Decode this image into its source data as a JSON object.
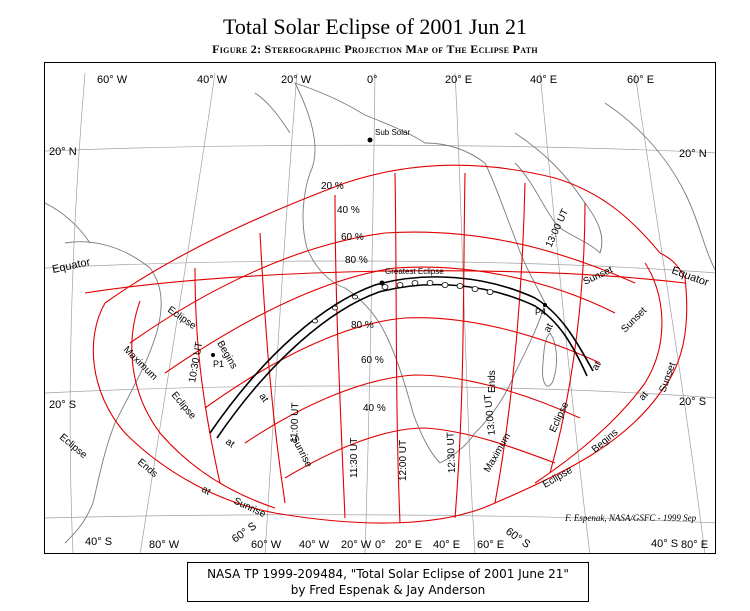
{
  "title": "Total Solar Eclipse of 2001 Jun 21",
  "subtitle": "Figure 2:  Stereographic Projection Map of The Eclipse Path",
  "credit": "F. Espenak, NASA/GSFC - 1999 Sep",
  "caption": {
    "line1": "NASA TP 1999-209484, \"Total Solar Eclipse of 2001 June 21\"",
    "line2": "by Fred Espenak & Jay Anderson"
  },
  "longitude_labels_top": [
    "60° W",
    "40° W",
    "20° W",
    "0°",
    "20° E",
    "40° E",
    "60° E"
  ],
  "longitude_labels_bottom": [
    "80° W",
    "60° W",
    "40° W",
    "20° W",
    "0°",
    "20° E",
    "40° E",
    "60° E",
    "80° E"
  ],
  "latitude_labels": {
    "north_20_left": "20° N",
    "north_20_right": "20° N",
    "south_20_left": "20° S",
    "south_20_right": "20° S",
    "south_40_left": "40° S",
    "south_40_right": "40° S",
    "south_60_left": "60° S",
    "south_60_right": "60° S"
  },
  "equator_left": "Equator",
  "equator_right": "Equator",
  "sub_solar": "Sub Solar",
  "greatest_eclipse": "Greatest Eclipse",
  "p1": "P1",
  "p4": "P4",
  "ut_times": [
    "10:30 UT",
    "11:00 UT",
    "11:30 UT",
    "12:00 UT",
    "12:30 UT",
    "13:00 UT",
    "13:00 UT"
  ],
  "magnitudes": [
    "20 %",
    "40 %",
    "60 %",
    "80 %",
    "80 %",
    "60 %",
    "40 %"
  ],
  "curve_words_left": [
    "Eclipse",
    "Begins",
    "Maximum",
    "Eclipse",
    "at",
    "Sunrise",
    "Ends",
    "at",
    "Eclipse",
    "at",
    "Sunrise"
  ],
  "curve_words_right": [
    "at",
    "Sunset",
    "Sunset",
    "Ends",
    "Sunset",
    "at",
    "Maximum",
    "Eclipse",
    "at",
    "Begins",
    "Eclipse"
  ],
  "map_colors": {
    "isochrones": "#e00000",
    "path": "#000000",
    "land": "#888888",
    "grid": "#9a9a9a"
  }
}
